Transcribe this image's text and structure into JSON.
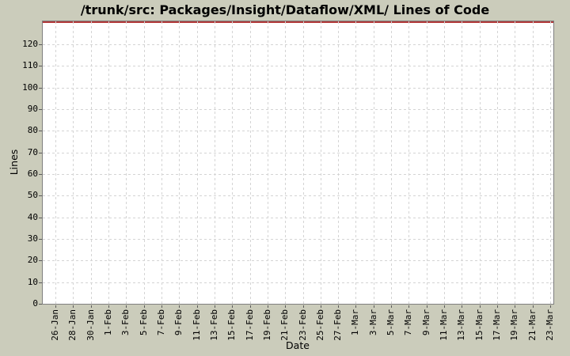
{
  "chart_data": {
    "type": "line",
    "title": "/trunk/src: Packages/Insight/Dataflow/XML/ Lines of Code",
    "xlabel": "Date",
    "ylabel": "Lines",
    "x_tick_labels": [
      "26-Jan",
      "28-Jan",
      "30-Jan",
      "1-Feb",
      "3-Feb",
      "5-Feb",
      "7-Feb",
      "9-Feb",
      "11-Feb",
      "13-Feb",
      "15-Feb",
      "17-Feb",
      "19-Feb",
      "21-Feb",
      "23-Feb",
      "25-Feb",
      "27-Feb",
      "1-Mar",
      "3-Mar",
      "5-Mar",
      "7-Mar",
      "9-Mar",
      "11-Mar",
      "13-Mar",
      "15-Mar",
      "17-Mar",
      "19-Mar",
      "21-Mar",
      "23-Mar"
    ],
    "y_tick_values": [
      0,
      10,
      20,
      30,
      40,
      50,
      60,
      70,
      80,
      90,
      100,
      110,
      120
    ],
    "ylim": [
      0,
      131
    ],
    "grid": true,
    "legend": "none",
    "colors": {
      "chart_background": "#cbccbb",
      "plot_background": "#ffffff",
      "plot_border": "#7f7f7f",
      "gridline": "#d4d4d4",
      "tick_mark": "#5a5a5a",
      "text": "#000000"
    },
    "series": [
      {
        "name": "lines-of-code",
        "color": "#b23a3a",
        "appearance": "horizontal red line clipped along the top edge of the plot area; no data points visible within the 0-120 axis range"
      }
    ]
  }
}
